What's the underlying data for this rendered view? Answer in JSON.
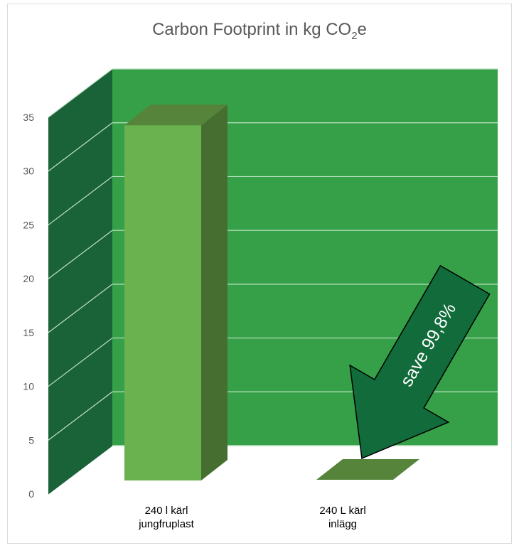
{
  "chart_data": {
    "type": "bar",
    "title_main": "Carbon Footprint in kg CO",
    "title_sub": "2",
    "title_tail": "e",
    "categories": [
      [
        "240 l kärl",
        "jungfruplast"
      ],
      [
        "240 L kärl",
        "inlägg"
      ]
    ],
    "values": [
      33.0,
      0.066
    ],
    "ylim": [
      0,
      35
    ],
    "yticks": [
      0,
      5,
      10,
      15,
      20,
      25,
      30,
      35
    ],
    "grid": true,
    "colors": {
      "back_wall": "#35a047",
      "side_wall": "#1a6238",
      "grid_line": "#bfe3c4",
      "bar_front": "#6ab150",
      "bar_side": "#476e31",
      "bar_top": "#55843a",
      "arrow_fill": "#116b3a"
    },
    "annotation": "save 99,8%"
  }
}
